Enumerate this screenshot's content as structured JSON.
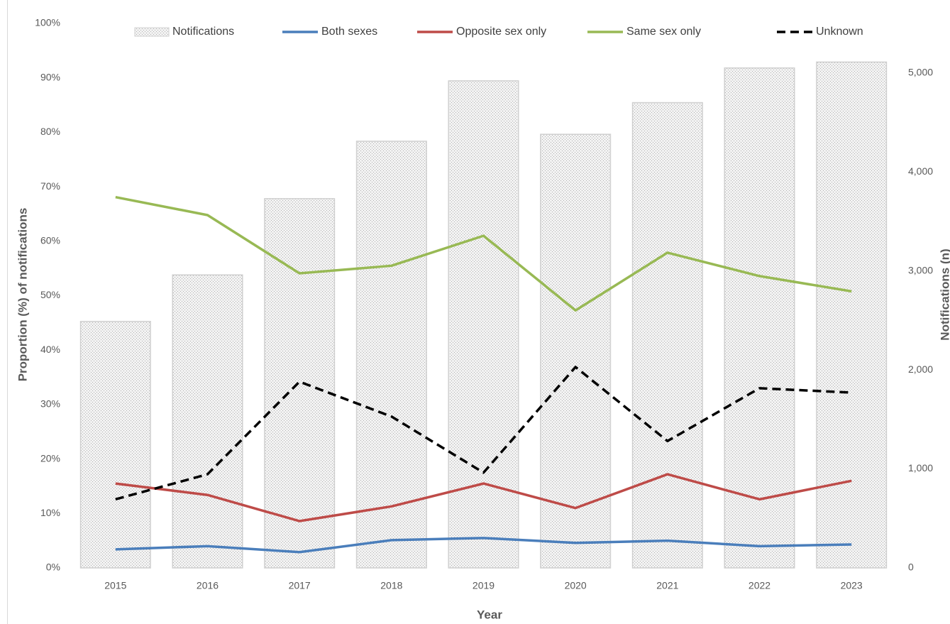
{
  "chart_data": {
    "type": "combo",
    "x_label": "Year",
    "y_label": "Proportion (%) of notifications",
    "y2_label": "Notifications (n)",
    "categories": [
      "2015",
      "2016",
      "2017",
      "2018",
      "2019",
      "2020",
      "2021",
      "2022",
      "2023"
    ],
    "ylim": [
      0,
      100
    ],
    "yticks": [
      {
        "value": 0,
        "label": "0%"
      },
      {
        "value": 10,
        "label": "10%"
      },
      {
        "value": 20,
        "label": "20%"
      },
      {
        "value": 30,
        "label": "30%"
      },
      {
        "value": 40,
        "label": "40%"
      },
      {
        "value": 50,
        "label": "50%"
      },
      {
        "value": 60,
        "label": "60%"
      },
      {
        "value": 70,
        "label": "70%"
      },
      {
        "value": 80,
        "label": "80%"
      },
      {
        "value": 90,
        "label": "90%"
      },
      {
        "value": 100,
        "label": "100%"
      }
    ],
    "y2lim": [
      0,
      5500
    ],
    "y2ticks": [
      0,
      {
        "value": 1000,
        "label": "1,000"
      },
      {
        "value": 2000,
        "label": "2,000"
      },
      {
        "value": 3000,
        "label": "3,000"
      },
      {
        "value": 4000,
        "label": "4,000"
      },
      {
        "value": 5000,
        "label": "5,000"
      }
    ],
    "legend": "top",
    "series": [
      {
        "name": "Notifications",
        "type": "bar",
        "axis": "y2",
        "color": "#d0d0d0",
        "values": [
          2490,
          2960,
          3730,
          4310,
          4920,
          4380,
          4700,
          5050,
          5110
        ]
      },
      {
        "name": "Both sexes",
        "type": "line",
        "color": "#4a7ebb",
        "values": [
          3.4,
          4.0,
          2.9,
          5.1,
          5.5,
          4.6,
          5.0,
          4.0,
          4.3
        ]
      },
      {
        "name": "Opposite sex only",
        "type": "line",
        "color": "#be4b48",
        "values": [
          15.5,
          13.4,
          8.6,
          11.3,
          15.5,
          11.0,
          17.2,
          12.6,
          16.0
        ]
      },
      {
        "name": "Same sex only",
        "type": "line",
        "color": "#98b954",
        "values": [
          68.1,
          64.8,
          54.1,
          55.5,
          61.0,
          47.3,
          57.9,
          53.6,
          50.8
        ]
      },
      {
        "name": "Unknown",
        "type": "line",
        "dash": true,
        "color": "#000000",
        "values": [
          12.6,
          17.2,
          34.2,
          27.8,
          17.5,
          36.9,
          23.3,
          33.0,
          32.2
        ]
      }
    ]
  }
}
